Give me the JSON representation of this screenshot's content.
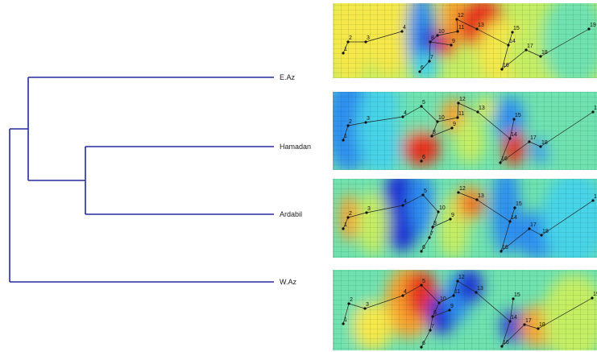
{
  "leaves": [
    {
      "label": "E.Az"
    },
    {
      "label": "Hamadan"
    },
    {
      "label": "Ardabil"
    },
    {
      "label": "W.Az"
    }
  ],
  "colors": {
    "dendrogram": "#232aa0",
    "background": "#ffffff",
    "heatmap_scale": [
      "#1d2fd6",
      "#2f8ff0",
      "#47d3e8",
      "#6fe2b0",
      "#c6ee63",
      "#f6e84a",
      "#f8a22e",
      "#e8331f"
    ]
  },
  "points": [
    "1",
    "2",
    "3",
    "4",
    "5",
    "6",
    "7",
    "8",
    "9",
    "10",
    "11",
    "12",
    "13",
    "14",
    "15",
    "16",
    "17",
    "18",
    "19"
  ],
  "panels": [
    {
      "name": "E.Az",
      "visible_points": [
        "1",
        "2",
        "3",
        "4",
        "6",
        "7",
        "8",
        "9",
        "10",
        "11",
        "12",
        "13",
        "14",
        "15",
        "16",
        "17",
        "18",
        "19"
      ],
      "hot_zones": [
        "points 10-13",
        "point 9"
      ],
      "cold_zones": [
        "points 4-6",
        "point 8"
      ]
    },
    {
      "name": "Hamadan",
      "visible_points": [
        "1",
        "2",
        "3",
        "4",
        "5",
        "6",
        "8",
        "9",
        "10",
        "11",
        "12",
        "13",
        "14",
        "15",
        "16",
        "17",
        "18",
        "19"
      ],
      "hot_zones": [
        "points 6-8",
        "points 11-12",
        "point 14",
        "point 16"
      ],
      "cold_zones": [
        "points 1-3",
        "point 15",
        "point 18"
      ]
    },
    {
      "name": "Ardabil",
      "visible_points": [
        "1",
        "2",
        "3",
        "4",
        "5",
        "6",
        "7",
        "8",
        "9",
        "10",
        "12",
        "13",
        "14",
        "15",
        "16",
        "17",
        "18",
        "19"
      ],
      "hot_zones": [
        "point 2",
        "points 12-13"
      ],
      "cold_zones": [
        "points 4-5",
        "point 15",
        "point 18"
      ]
    },
    {
      "name": "W.Az",
      "visible_points": [
        "1",
        "2",
        "3",
        "4",
        "5",
        "6",
        "7",
        "8",
        "9",
        "10",
        "11",
        "12",
        "13",
        "14",
        "15",
        "16",
        "17",
        "18",
        "19"
      ],
      "hot_zones": [
        "points 4-5",
        "point 18"
      ],
      "cold_zones": [
        "points 10-12",
        "point 14"
      ]
    }
  ]
}
